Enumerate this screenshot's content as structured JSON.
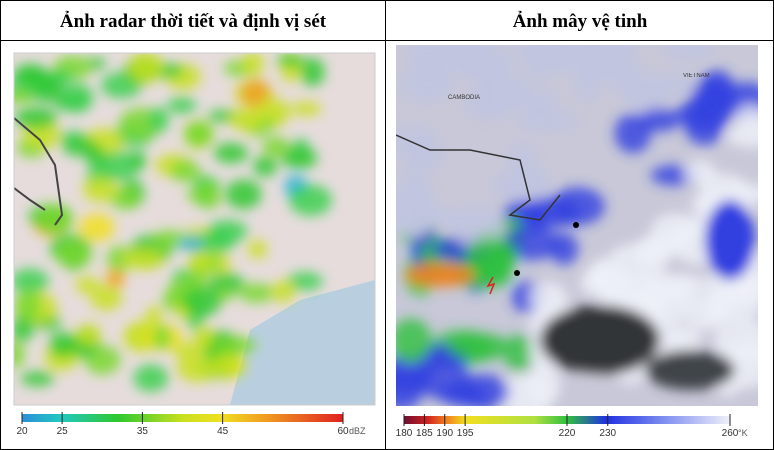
{
  "panels": [
    {
      "title": "Ảnh radar thời tiết và định vị sét",
      "colorbar": {
        "range": [
          20,
          60
        ],
        "ticks": [
          20,
          25,
          35,
          45,
          60
        ],
        "unit": "dBZ"
      }
    },
    {
      "title": "Ảnh mây vệ tinh",
      "map_labels": [
        "CAMBODIA",
        "VIETNAM"
      ],
      "colorbar": {
        "range": [
          180,
          260
        ],
        "ticks": [
          180,
          185,
          190,
          195,
          220,
          230,
          260
        ],
        "unit": "°K"
      }
    }
  ]
}
